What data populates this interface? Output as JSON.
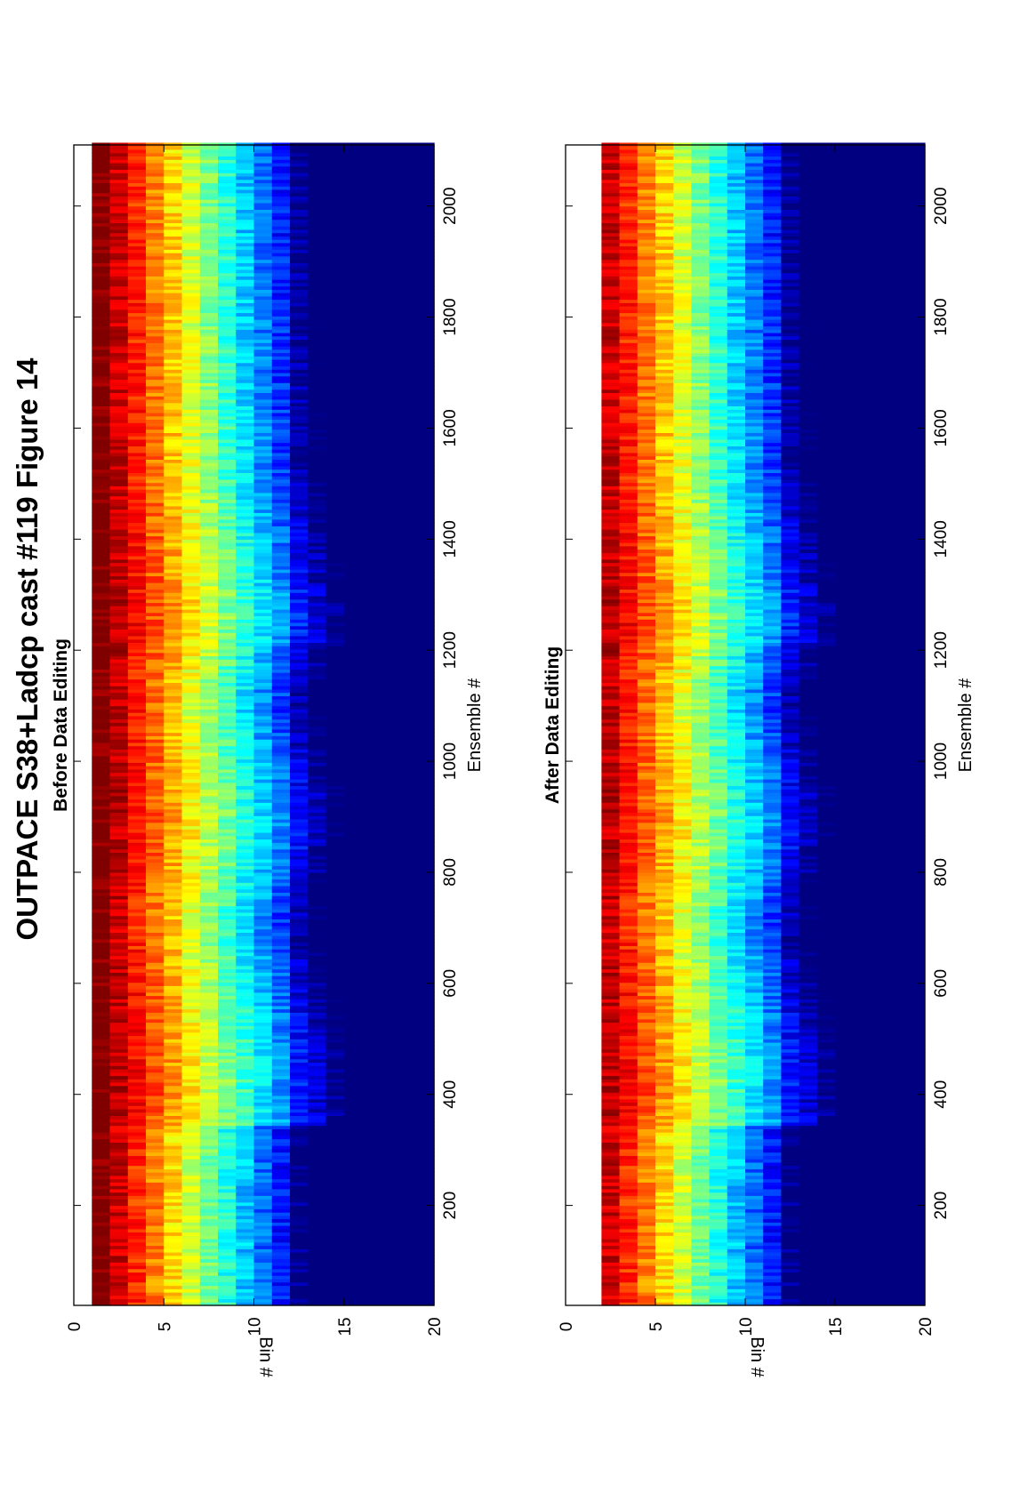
{
  "figure_title": "OUTPACE S38+Ladcp cast #119  Figure 14",
  "chart_data": [
    {
      "type": "heatmap",
      "title": "Before Data Editing",
      "xlabel": "Ensemble #",
      "ylabel": "Bin #",
      "xlim": [
        20,
        2110
      ],
      "ylim": [
        0,
        20
      ],
      "xticks": [
        200,
        400,
        600,
        800,
        1000,
        1200,
        1400,
        1600,
        1800,
        2000
      ],
      "yticks": [
        0,
        5,
        10,
        15,
        20
      ],
      "colormap": "jet",
      "empty_bins": [
        0
      ],
      "first_bin_with_data": 1
    },
    {
      "type": "heatmap",
      "title": "After Data Editing",
      "xlabel": "Ensemble #",
      "ylabel": "Bin #",
      "xlim": [
        20,
        2110
      ],
      "ylim": [
        0,
        20
      ],
      "xticks": [
        200,
        400,
        600,
        800,
        1000,
        1200,
        1400,
        1600,
        1800,
        2000
      ],
      "yticks": [
        0,
        5,
        10,
        15,
        20
      ],
      "colormap": "jet",
      "empty_bins": [
        0,
        1
      ],
      "first_bin_with_data": 2
    }
  ]
}
